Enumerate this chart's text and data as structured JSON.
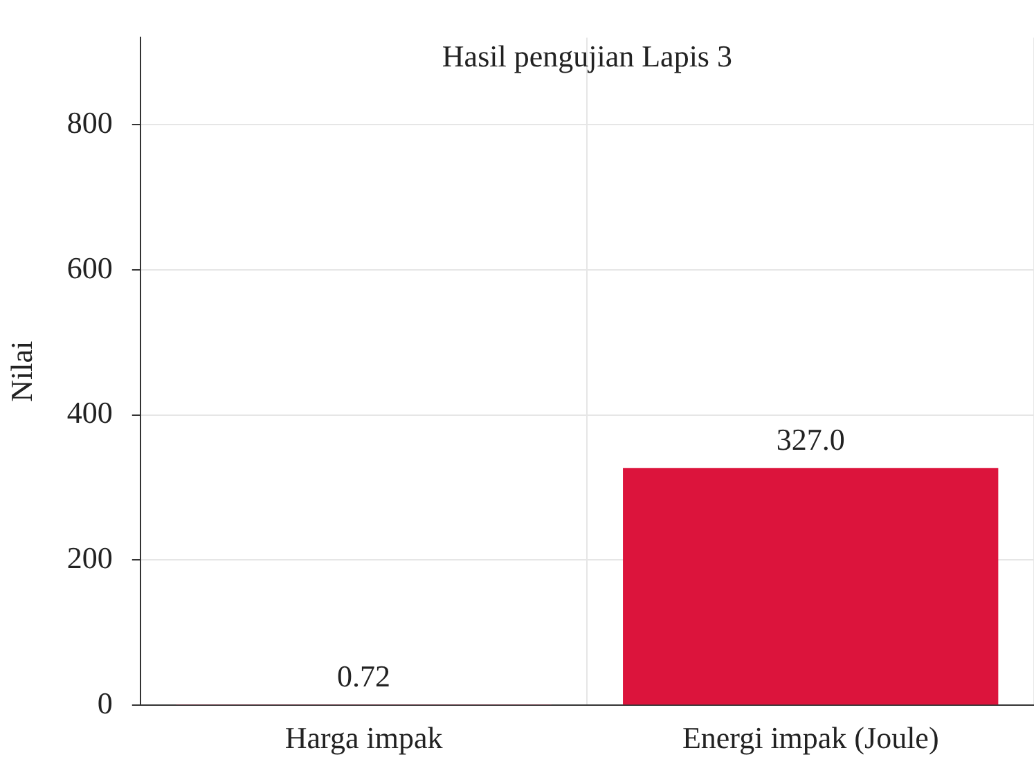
{
  "chart_data": {
    "type": "bar",
    "title": "Hasil pengujian Lapis 3",
    "ylabel": "Nilai",
    "categories": [
      "Harga impak",
      "Energi impak (Joule)"
    ],
    "values": [
      0.72,
      327.0
    ],
    "value_labels": [
      "0.72",
      "327.0"
    ],
    "color": "#dc143c",
    "ylim": [
      0,
      920
    ],
    "yticks": [
      0,
      200,
      400,
      600,
      800
    ],
    "grid": true
  }
}
